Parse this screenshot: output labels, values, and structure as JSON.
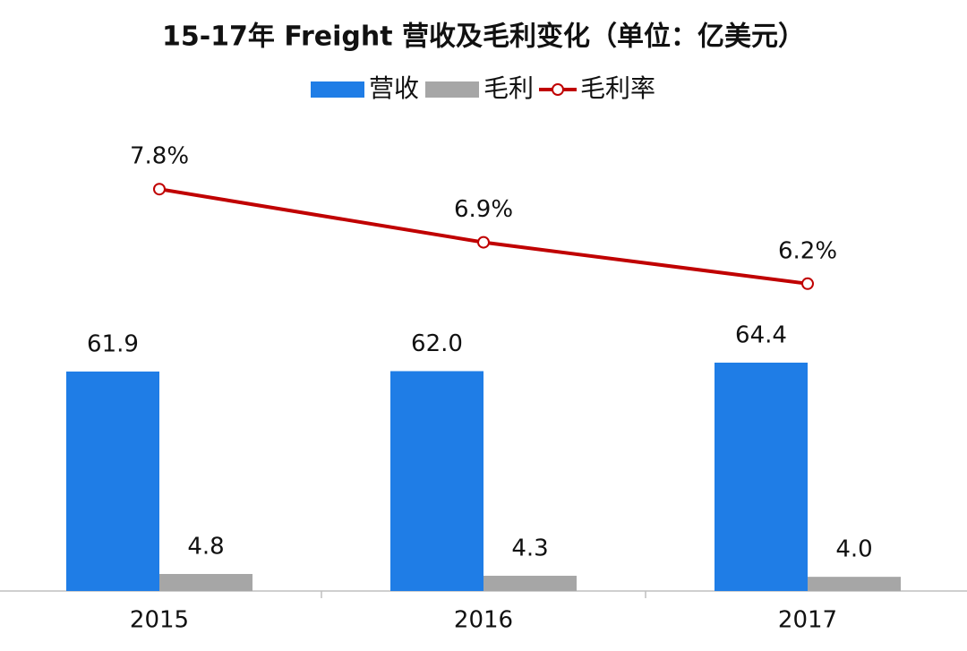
{
  "chart_data": {
    "type": "bar-line",
    "title": "15-17年  Freight  营收及毛利变化（单位：亿美元）",
    "categories": [
      "2015",
      "2016",
      "2017"
    ],
    "series": [
      {
        "name": "营收",
        "type": "bar",
        "color": "#1f7de6",
        "values": [
          61.9,
          62.0,
          64.4
        ],
        "value_labels": [
          "61.9",
          "62.0",
          "64.4"
        ]
      },
      {
        "name": "毛利",
        "type": "bar",
        "color": "#a6a6a6",
        "values": [
          4.8,
          4.3,
          4.0
        ],
        "value_labels": [
          "4.8",
          "4.3",
          "4.0"
        ]
      },
      {
        "name": "毛利率",
        "type": "line",
        "axis": "y2",
        "color": "#c00000",
        "values": [
          7.8,
          6.9,
          6.2
        ],
        "value_labels": [
          "7.8%",
          "6.9%",
          "6.2%"
        ]
      }
    ],
    "ylim": [
      0,
      150
    ],
    "y2lim": [
      1,
      10
    ],
    "legend": "top"
  }
}
